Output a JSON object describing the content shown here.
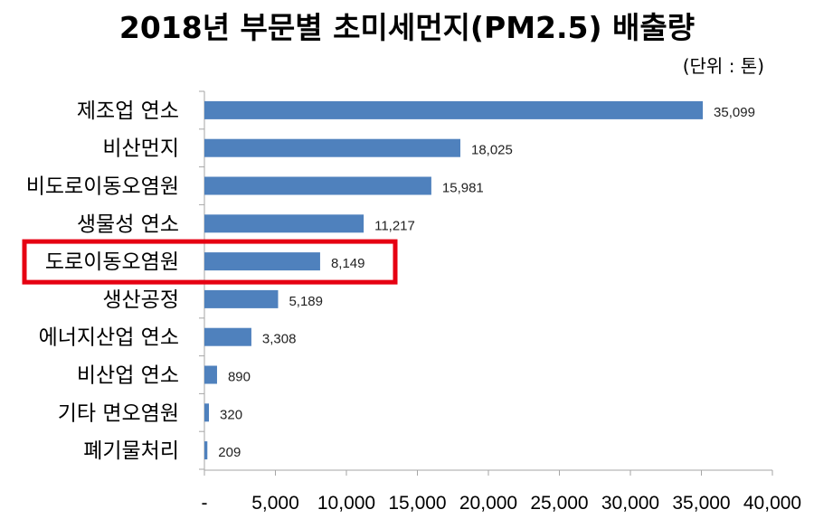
{
  "chart_data": {
    "type": "bar",
    "orientation": "horizontal",
    "title": "2018년 부문별 초미세먼지(PM2.5) 배출량",
    "unit_note": "(단위 : 톤)",
    "categories": [
      "제조업 연소",
      "비산먼지",
      "비도로이동오염원",
      "생물성 연소",
      "도로이동오염원",
      "생산공정",
      "에너지산업 연소",
      "비산업 연소",
      "기타 면오염원",
      "폐기물처리"
    ],
    "values": [
      35099,
      18025,
      15981,
      11217,
      8149,
      5189,
      3308,
      890,
      320,
      209
    ],
    "data_labels": [
      "35,099",
      "18,025",
      "15,981",
      "11,217",
      "8,149",
      "5,189",
      "3,308",
      "890",
      "320",
      "209"
    ],
    "x_ticks": [
      "-",
      "5,000",
      "10,000",
      "15,000",
      "20,000",
      "25,000",
      "30,000",
      "35,000",
      "40,000"
    ],
    "xlim": [
      0,
      40000
    ],
    "xlabel": "",
    "ylabel": "",
    "grid": false,
    "legend": "none",
    "highlighted_category": "도로이동오염원",
    "colors": {
      "bar": "#4f81bd",
      "highlight": "#e60012",
      "axis": "#a6a6a6"
    }
  }
}
